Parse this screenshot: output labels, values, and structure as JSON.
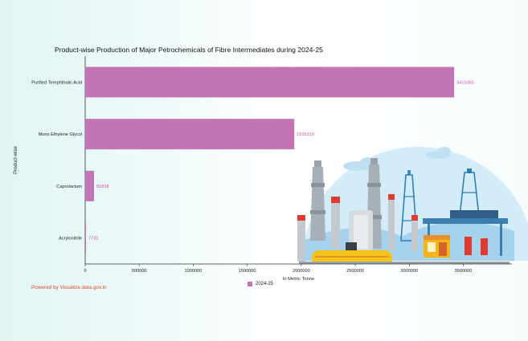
{
  "title": "Product-wise Production of Major Petrochemicals of Fibre Intermediates during 2024-25",
  "powered_by": "Powered by Visualize.data.gov.in",
  "colors": {
    "bar": "#c374b7",
    "label": "#c94fb1"
  },
  "chart_data": {
    "type": "bar",
    "orientation": "horizontal",
    "categories": [
      "Purified Terephthalic Acid",
      "Mono Ethylene Glycol",
      "Caprolactum",
      "Acrylonitrile"
    ],
    "series": [
      {
        "name": "2024-25",
        "values": [
          3415365,
          1935310,
          81818,
          7731
        ]
      }
    ],
    "data_labels": [
      "3415365",
      "1935310",
      "81818",
      "7731"
    ],
    "xlabel": "In Metric Tonne",
    "ylabel": "Product-wise",
    "xlim": [
      0,
      3950000
    ],
    "xticks": [
      0,
      500000,
      1000000,
      1500000,
      2000000,
      2500000,
      3000000,
      3500000
    ],
    "xtick_labels": [
      "0",
      "500000",
      "1000000",
      "1500000",
      "2000000",
      "2500000",
      "3000000",
      "3500000"
    ],
    "legend_position": "bottom",
    "grid": false
  }
}
